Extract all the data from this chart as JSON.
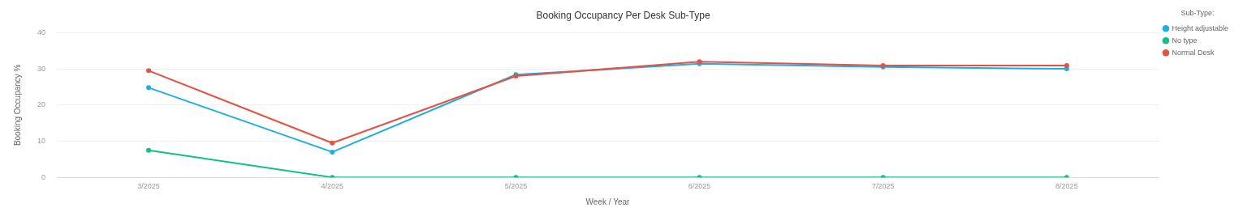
{
  "chart_data": {
    "type": "line",
    "title": "Booking Occupancy Per Desk Sub-Type",
    "xlabel": "Week / Year",
    "ylabel": "Booking Occupancy %",
    "legend_title": "Sub-Type:",
    "categories": [
      "3/2025",
      "4/2025",
      "5/2025",
      "6/2025",
      "7/2025",
      "8/2025"
    ],
    "series": [
      {
        "name": "Height adjustable",
        "color": "#1eaee6",
        "values": [
          24.8,
          7.0,
          28.4,
          31.4,
          30.5,
          30.0
        ]
      },
      {
        "name": "No type",
        "color": "#10c08a",
        "values": [
          7.5,
          0,
          0,
          0,
          0,
          0
        ]
      },
      {
        "name": "Normal Desk",
        "color": "#e8503f",
        "values": [
          29.5,
          9.5,
          28.0,
          32.0,
          30.9,
          30.9
        ]
      }
    ],
    "ylim": [
      0,
      40
    ],
    "yticks": [
      0,
      10,
      20,
      30,
      40
    ],
    "grid": "y",
    "legend": "top right",
    "marker": "circle",
    "line_style": "solid"
  }
}
